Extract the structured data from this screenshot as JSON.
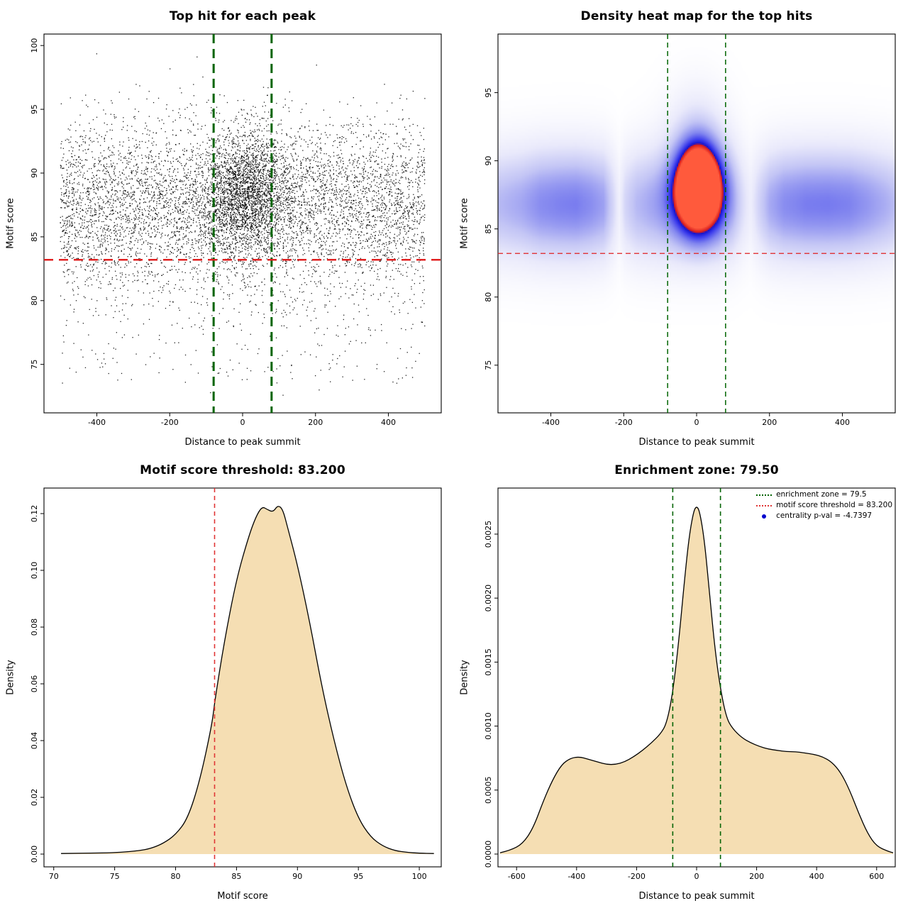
{
  "figure": {
    "background": "#ffffff"
  },
  "chart_data": [
    {
      "type": "scatter",
      "title": "Top hit for each peak",
      "xlabel": "Distance to peak summit",
      "ylabel": "Motif score",
      "xlim": [
        -545,
        545
      ],
      "ylim": [
        71.2,
        100.9
      ],
      "xticks": [
        -400,
        -200,
        0,
        200,
        400
      ],
      "xtick_labels": [
        "-400",
        "-200",
        "0",
        "200",
        "400"
      ],
      "yticks": [
        75,
        80,
        85,
        90,
        95,
        100
      ],
      "ytick_labels": [
        "75",
        "80",
        "85",
        "90",
        "95",
        "100"
      ],
      "point_color": "#000000",
      "vlines": {
        "x": [
          -79.5,
          79.5
        ],
        "color": "#006400",
        "width": 3,
        "dash": [
          13,
          8
        ]
      },
      "hlines": {
        "y": [
          83.2
        ],
        "color": "#e02020",
        "width": 2.4,
        "dash": [
          13,
          8
        ]
      },
      "scatter_model": {
        "seed": 20240613,
        "components": [
          {
            "n": 6000,
            "x": {
              "dist": "uniform",
              "a": -500,
              "b": 500
            },
            "y": {
              "dist": "normal",
              "mean": 87.4,
              "sd": 3.3,
              "min": 73,
              "max": 100
            }
          },
          {
            "n": 2300,
            "x": {
              "dist": "normal",
              "mean": 10,
              "sd": 60,
              "min": -500,
              "max": 500
            },
            "y": {
              "dist": "normal",
              "mean": 88.4,
              "sd": 2.5,
              "min": 74,
              "max": 99.6
            }
          },
          {
            "n": 260,
            "x": {
              "dist": "uniform",
              "a": -500,
              "b": 500
            },
            "y": {
              "dist": "uniform",
              "a": 73.5,
              "b": 81.5
            }
          },
          {
            "n": 8,
            "x": {
              "dist": "uniform",
              "a": -450,
              "b": 450
            },
            "y": {
              "dist": "uniform",
              "a": 72.3,
              "b": 74.2
            }
          }
        ]
      }
    },
    {
      "type": "heatmap",
      "title": "Density heat map for the top hits",
      "xlabel": "Distance to peak summit",
      "ylabel": "Motif score",
      "xlim": [
        -545,
        545
      ],
      "ylim": [
        71.5,
        99.3
      ],
      "xticks": [
        -400,
        -200,
        0,
        200,
        400
      ],
      "xtick_labels": [
        "-400",
        "-200",
        "0",
        "200",
        "400"
      ],
      "yticks": [
        75,
        80,
        85,
        90,
        95
      ],
      "ytick_labels": [
        "75",
        "80",
        "85",
        "90",
        "95"
      ],
      "vlines": {
        "x": [
          -79.5,
          79.5
        ],
        "color": "#006400",
        "width": 1.5,
        "dash": [
          7,
          5
        ]
      },
      "hlines": {
        "y": [
          83.2
        ],
        "color": "#e02020",
        "width": 1.2,
        "dash": [
          7,
          5
        ]
      },
      "density_model": {
        "band": {
          "y_mean": 86.8,
          "y_sd": 2.9,
          "amplitude": 0.62,
          "x_profile": [
            [
              -545,
              0.62
            ],
            [
              -480,
              0.72
            ],
            [
              -430,
              0.85
            ],
            [
              -380,
              0.9
            ],
            [
              -330,
              0.92
            ],
            [
              -290,
              0.85
            ],
            [
              -255,
              0.75
            ],
            [
              -230,
              0.45
            ],
            [
              -212,
              0.2
            ],
            [
              -195,
              0.45
            ],
            [
              -165,
              0.62
            ],
            [
              -130,
              0.7
            ],
            [
              -95,
              0.75
            ],
            [
              -60,
              0.8
            ],
            [
              0,
              0.82
            ],
            [
              60,
              0.8
            ],
            [
              100,
              0.6
            ],
            [
              128,
              0.35
            ],
            [
              148,
              0.22
            ],
            [
              170,
              0.45
            ],
            [
              200,
              0.7
            ],
            [
              240,
              0.85
            ],
            [
              300,
              0.92
            ],
            [
              360,
              0.93
            ],
            [
              420,
              0.9
            ],
            [
              470,
              0.8
            ],
            [
              520,
              0.68
            ],
            [
              545,
              0.6
            ]
          ]
        },
        "blobs": [
          {
            "x_mean": 5,
            "x_sd": 42,
            "y_mean": 88.1,
            "y_sd": 2.2,
            "amplitude": 1.5
          },
          {
            "x_mean": 0,
            "x_sd": 60,
            "y_mean": 92.5,
            "y_sd": 2.6,
            "amplitude": 0.16
          }
        ],
        "color_stops": [
          [
            0,
            "#ffffff"
          ],
          [
            0.18,
            "#e9e9fb"
          ],
          [
            0.35,
            "#c3c5f5"
          ],
          [
            0.55,
            "#8286ef"
          ],
          [
            0.72,
            "#3b3bec"
          ],
          [
            0.82,
            "#1515cf"
          ],
          [
            0.87,
            "#d81d1d"
          ],
          [
            1,
            "#ff5a3c"
          ]
        ]
      }
    },
    {
      "type": "density",
      "title": "Motif score threshold: 83.200",
      "xlabel": "Motif score",
      "ylabel": "Density",
      "xlim": [
        69.2,
        101.8
      ],
      "ylim": [
        -0.0045,
        0.129
      ],
      "xticks": [
        70,
        75,
        80,
        85,
        90,
        95,
        100
      ],
      "xtick_labels": [
        "70",
        "75",
        "80",
        "85",
        "90",
        "95",
        "100"
      ],
      "yticks": [
        0,
        0.02,
        0.04,
        0.06,
        0.08,
        0.1,
        0.12
      ],
      "ytick_labels": [
        "0.00",
        "0.02",
        "0.04",
        "0.06",
        "0.08",
        "0.10",
        "0.12"
      ],
      "fill": "#f5deb3",
      "stroke": "#000000",
      "vlines": {
        "x": [
          83.2
        ],
        "color": "#e03535",
        "width": 1.6,
        "dash": [
          6,
          5
        ]
      },
      "curve": [
        [
          70.6,
          0.0002
        ],
        [
          72,
          0.0003
        ],
        [
          74,
          0.0004
        ],
        [
          75.5,
          0.0006
        ],
        [
          77,
          0.0012
        ],
        [
          78,
          0.002
        ],
        [
          79,
          0.0038
        ],
        [
          80,
          0.0068
        ],
        [
          81,
          0.0125
        ],
        [
          82,
          0.026
        ],
        [
          83,
          0.046
        ],
        [
          83.2,
          0.0535
        ],
        [
          84,
          0.075
        ],
        [
          85,
          0.097
        ],
        [
          86,
          0.112
        ],
        [
          86.6,
          0.119
        ],
        [
          87.1,
          0.1225
        ],
        [
          87.5,
          0.1215
        ],
        [
          88,
          0.1205
        ],
        [
          88.4,
          0.123
        ],
        [
          88.8,
          0.1215
        ],
        [
          89.2,
          0.115
        ],
        [
          90,
          0.102
        ],
        [
          91,
          0.082
        ],
        [
          92,
          0.059
        ],
        [
          93,
          0.04
        ],
        [
          94,
          0.024
        ],
        [
          95,
          0.0125
        ],
        [
          96,
          0.006
        ],
        [
          97,
          0.0028
        ],
        [
          98,
          0.0012
        ],
        [
          99,
          0.0006
        ],
        [
          100,
          0.0003
        ],
        [
          101.2,
          0.0002
        ]
      ]
    },
    {
      "type": "density",
      "title": "Enrichment zone: 79.50",
      "xlabel": "Distance to peak summit",
      "ylabel": "Density",
      "xlim": [
        -662,
        662
      ],
      "ylim": [
        -0.0001,
        0.00286
      ],
      "xticks": [
        -600,
        -400,
        -200,
        0,
        200,
        400,
        600
      ],
      "xtick_labels": [
        "-600",
        "-400",
        "-200",
        "0",
        "200",
        "400",
        "600"
      ],
      "yticks": [
        0,
        0.0005,
        0.001,
        0.0015,
        0.002,
        0.0025
      ],
      "ytick_labels": [
        "0.0000",
        "0.0005",
        "0.0010",
        "0.0015",
        "0.0020",
        "0.0025"
      ],
      "fill": "#f5deb3",
      "stroke": "#000000",
      "vlines": {
        "x": [
          -79.5,
          79.5
        ],
        "color": "#006400",
        "width": 1.6,
        "dash": [
          6,
          5
        ]
      },
      "curve": [
        [
          -655,
          1e-05
        ],
        [
          -620,
          3e-05
        ],
        [
          -580,
          8e-05
        ],
        [
          -545,
          0.0002
        ],
        [
          -510,
          0.00042
        ],
        [
          -480,
          0.00058
        ],
        [
          -450,
          0.0007
        ],
        [
          -420,
          0.00075
        ],
        [
          -390,
          0.00076
        ],
        [
          -360,
          0.00074
        ],
        [
          -330,
          0.00072
        ],
        [
          -300,
          0.0007
        ],
        [
          -270,
          0.0007
        ],
        [
          -240,
          0.00072
        ],
        [
          -210,
          0.00076
        ],
        [
          -180,
          0.00081
        ],
        [
          -150,
          0.00087
        ],
        [
          -120,
          0.00094
        ],
        [
          -100,
          0.00102
        ],
        [
          -80,
          0.00125
        ],
        [
          -60,
          0.00165
        ],
        [
          -40,
          0.00215
        ],
        [
          -25,
          0.00248
        ],
        [
          -10,
          0.00268
        ],
        [
          0,
          0.00272
        ],
        [
          10,
          0.00268
        ],
        [
          25,
          0.00247
        ],
        [
          40,
          0.00212
        ],
        [
          60,
          0.00162
        ],
        [
          80,
          0.00128
        ],
        [
          100,
          0.00106
        ],
        [
          120,
          0.00098
        ],
        [
          150,
          0.00091
        ],
        [
          180,
          0.00087
        ],
        [
          210,
          0.00084
        ],
        [
          240,
          0.00082
        ],
        [
          270,
          0.00081
        ],
        [
          300,
          0.0008
        ],
        [
          330,
          0.0008
        ],
        [
          360,
          0.00079
        ],
        [
          390,
          0.00078
        ],
        [
          420,
          0.00076
        ],
        [
          450,
          0.00072
        ],
        [
          480,
          0.00064
        ],
        [
          510,
          0.0005
        ],
        [
          540,
          0.00032
        ],
        [
          570,
          0.00016
        ],
        [
          600,
          6e-05
        ],
        [
          640,
          2e-05
        ],
        [
          655,
          1e-05
        ]
      ],
      "legend": {
        "items": [
          {
            "swatch": "line",
            "color": "#006400",
            "label": "enrichment zone = 79.5"
          },
          {
            "swatch": "line",
            "color": "#e03535",
            "label": "motif score threshold = 83.200"
          },
          {
            "swatch": "point",
            "color": "#0000cd",
            "label": "centrality p-val = -4.7397"
          }
        ]
      }
    }
  ]
}
